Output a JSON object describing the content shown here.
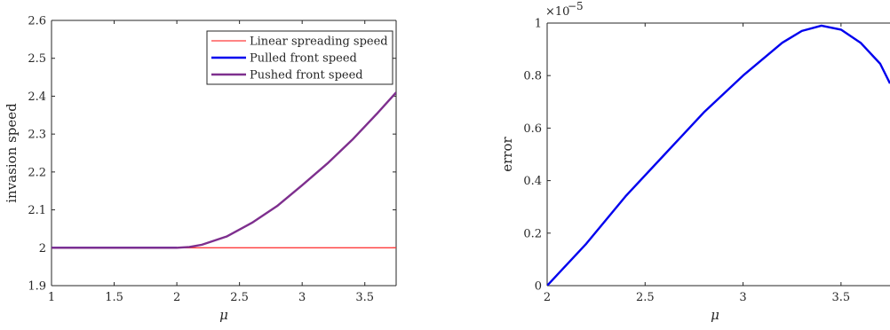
{
  "chart_data": [
    {
      "type": "line",
      "title": "",
      "xlabel": "μ",
      "ylabel": "invasion speed",
      "xlim": [
        1,
        3.75
      ],
      "ylim": [
        1.9,
        2.6
      ],
      "xticks": [
        "1",
        "1.5",
        "2",
        "2.5",
        "3",
        "3.5"
      ],
      "xtick_values": [
        1,
        1.5,
        2,
        2.5,
        3,
        3.5
      ],
      "yticks": [
        "1.9",
        "2",
        "2.1",
        "2.2",
        "2.3",
        "2.4",
        "2.5",
        "2.6"
      ],
      "ytick_values": [
        1.9,
        2.0,
        2.1,
        2.2,
        2.3,
        2.4,
        2.5,
        2.6
      ],
      "grid": false,
      "legend_position": "top-right",
      "series": [
        {
          "name": "Linear spreading speed",
          "color": "#ff3b3b",
          "x": [
            1,
            3.75
          ],
          "y": [
            2,
            2
          ]
        },
        {
          "name": "Pulled front speed",
          "color": "#0000ee",
          "x": [
            1,
            1.5,
            2
          ],
          "y": [
            2,
            2,
            2
          ]
        },
        {
          "name": "Pushed front speed",
          "color": "#7e2f8e",
          "x": [
            1.0,
            1.5,
            2.0,
            2.1,
            2.2,
            2.4,
            2.6,
            2.8,
            3.0,
            3.2,
            3.4,
            3.6,
            3.75
          ],
          "y": [
            2.0,
            2.0,
            2.0,
            2.002,
            2.008,
            2.03,
            2.066,
            2.11,
            2.165,
            2.222,
            2.285,
            2.355,
            2.41
          ]
        }
      ]
    },
    {
      "type": "line",
      "title": "",
      "xlabel": "μ",
      "ylabel": "error",
      "exponent_label": "×10",
      "exponent_power": "−5",
      "xlim": [
        2,
        3.75
      ],
      "ylim": [
        0,
        1
      ],
      "xticks": [
        "2",
        "2.5",
        "3",
        "3.5"
      ],
      "xtick_values": [
        2,
        2.5,
        3,
        3.5
      ],
      "yticks": [
        "0",
        "0.2",
        "0.4",
        "0.6",
        "0.8",
        "1"
      ],
      "ytick_values": [
        0,
        0.2,
        0.4,
        0.6,
        0.8,
        1
      ],
      "grid": false,
      "series": [
        {
          "color": "#0000ee",
          "x": [
            2.0,
            2.2,
            2.4,
            2.6,
            2.8,
            3.0,
            3.2,
            3.3,
            3.4,
            3.5,
            3.6,
            3.7,
            3.75
          ],
          "y": [
            0.0,
            0.16,
            0.34,
            0.5,
            0.66,
            0.8,
            0.925,
            0.97,
            0.99,
            0.975,
            0.925,
            0.845,
            0.77
          ]
        }
      ]
    }
  ]
}
